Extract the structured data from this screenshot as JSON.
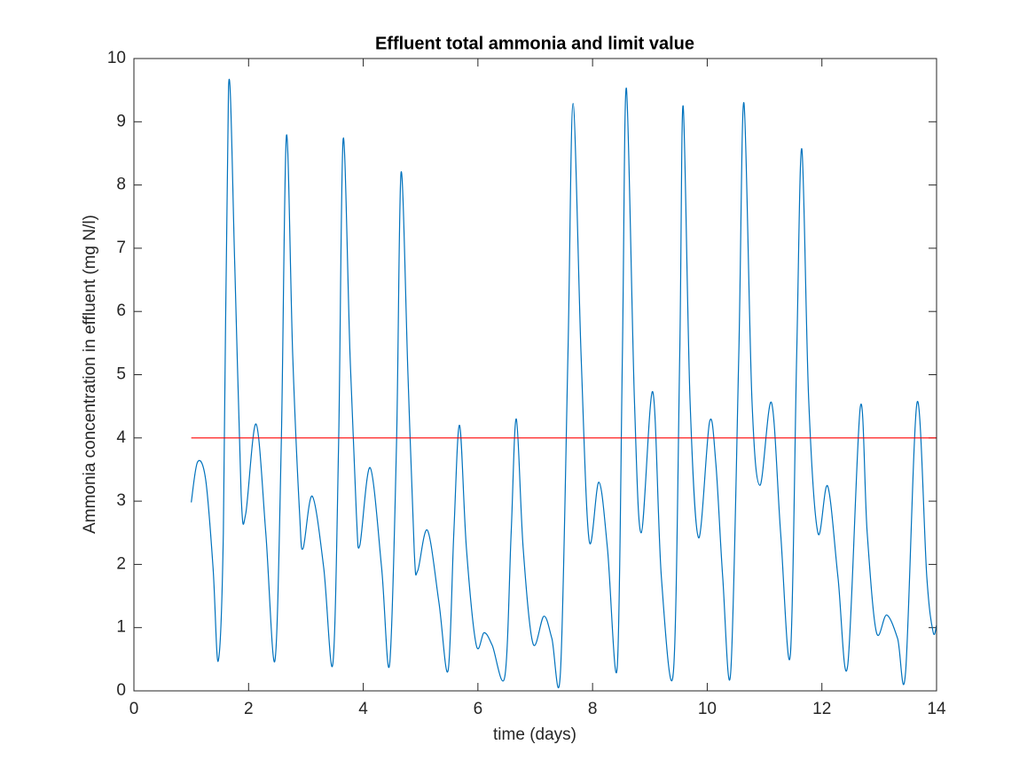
{
  "chart_data": {
    "type": "line",
    "title": "Effluent total ammonia and limit value",
    "xlabel": "time (days)",
    "ylabel": "Ammonia concentration in effluent (mg N/l)",
    "xlim": [
      0,
      14
    ],
    "xticks": [
      0,
      2,
      4,
      6,
      8,
      10,
      12,
      14
    ],
    "ylim": [
      0,
      10
    ],
    "yticks": [
      0,
      1,
      2,
      3,
      4,
      5,
      6,
      7,
      8,
      9,
      10
    ],
    "grid": false,
    "series": [
      {
        "color": "#0072bd",
        "x": [
          1.0,
          1.11,
          1.25,
          1.38,
          1.47,
          1.56,
          1.65,
          1.76,
          1.87,
          1.95,
          2.13,
          2.3,
          2.46,
          2.57,
          2.66,
          2.77,
          2.89,
          2.95,
          3.11,
          3.31,
          3.47,
          3.57,
          3.65,
          3.77,
          3.88,
          3.94,
          4.12,
          4.32,
          4.46,
          4.58,
          4.66,
          4.78,
          4.89,
          4.95,
          5.12,
          5.32,
          5.48,
          5.58,
          5.68,
          5.8,
          5.97,
          6.11,
          6.25,
          6.47,
          6.58,
          6.67,
          6.79,
          6.96,
          7.15,
          7.29,
          7.44,
          7.57,
          7.66,
          7.8,
          7.94,
          8.11,
          8.26,
          8.43,
          8.52,
          8.59,
          8.73,
          8.85,
          9.05,
          9.2,
          9.41,
          9.52,
          9.58,
          9.7,
          9.85,
          10.04,
          10.15,
          10.27,
          10.41,
          10.55,
          10.64,
          10.78,
          10.92,
          11.12,
          11.28,
          11.45,
          11.56,
          11.65,
          11.77,
          11.93,
          12.1,
          12.28,
          12.45,
          12.67,
          12.79,
          12.95,
          13.13,
          13.32,
          13.46,
          13.66,
          13.83,
          13.94,
          14.0
        ],
        "values": [
          2.98,
          3.62,
          3.35,
          1.95,
          0.47,
          2.5,
          9.55,
          6.7,
          3.1,
          2.8,
          4.22,
          2.5,
          0.48,
          3.9,
          8.78,
          5.3,
          2.8,
          2.25,
          3.08,
          1.95,
          0.43,
          3.9,
          8.73,
          5.3,
          2.8,
          2.3,
          3.53,
          1.95,
          0.42,
          3.9,
          8.2,
          5.0,
          2.2,
          1.9,
          2.54,
          1.4,
          0.32,
          2.5,
          4.2,
          2.25,
          0.73,
          0.92,
          0.72,
          0.23,
          2.5,
          4.3,
          2.25,
          0.75,
          1.18,
          0.83,
          0.3,
          5.3,
          9.29,
          5.3,
          2.38,
          3.3,
          2.25,
          0.37,
          5.3,
          9.53,
          4.6,
          2.5,
          4.73,
          1.8,
          0.3,
          5.3,
          9.25,
          4.6,
          2.42,
          4.25,
          3.6,
          1.8,
          0.3,
          5.3,
          9.3,
          4.6,
          3.25,
          4.56,
          2.5,
          0.57,
          5.3,
          8.57,
          4.6,
          2.5,
          3.24,
          1.8,
          0.4,
          4.49,
          2.5,
          0.93,
          1.2,
          0.83,
          0.3,
          4.56,
          1.8,
          0.93,
          1.04
        ]
      },
      {
        "color": "#ff0000",
        "x": [
          1,
          14
        ],
        "values": [
          4,
          4
        ]
      }
    ]
  }
}
